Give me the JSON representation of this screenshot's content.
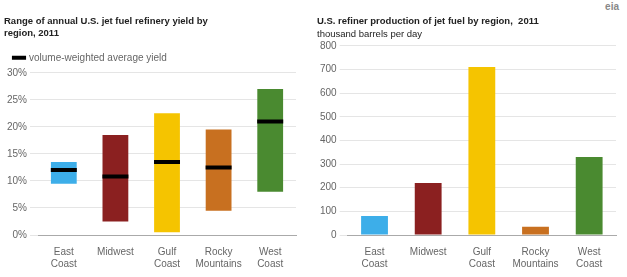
{
  "chart_data": [
    {
      "type": "range_bar",
      "title": "Range of annual U.S. jet fuel refinery yield by\nregion, 2011",
      "categories": [
        "East\nCoast",
        "Midwest",
        "Gulf\nCoast",
        "Rocky\nMountains",
        "West\nCoast"
      ],
      "low": [
        0.095,
        0.025,
        0.005,
        0.045,
        0.08
      ],
      "high": [
        0.135,
        0.185,
        0.225,
        0.195,
        0.27
      ],
      "colors": [
        "#3daee9",
        "#8b2020",
        "#f5c400",
        "#c87020",
        "#4a8a30"
      ],
      "series": [
        {
          "name": "volume-weighted average yield",
          "type": "marker",
          "marker": "line",
          "color": "#000000",
          "values": [
            0.12,
            0.108,
            0.135,
            0.125,
            0.21
          ]
        }
      ],
      "ylim": [
        0,
        0.3
      ],
      "yticks": [
        {
          "value": 0,
          "label": "0%"
        },
        {
          "value": 0.05,
          "label": "5%"
        },
        {
          "value": 0.1,
          "label": "10%"
        },
        {
          "value": 0.15,
          "label": "15%"
        },
        {
          "value": 0.2,
          "label": "20%"
        },
        {
          "value": 0.25,
          "label": "25%"
        },
        {
          "value": 0.3,
          "label": "30%"
        }
      ],
      "grid": true,
      "legend": "upper left"
    },
    {
      "type": "bar",
      "title": "U.S. refiner production of jet fuel by region,  2011",
      "subtitle": "thousand barrels per day",
      "categories": [
        "East\nCoast",
        "Midwest",
        "Gulf\nCoast",
        "Rocky\nMountains",
        "West\nCoast"
      ],
      "values": [
        80,
        220,
        710,
        35,
        330
      ],
      "colors": [
        "#3daee9",
        "#8b2020",
        "#f5c400",
        "#c87020",
        "#4a8a30"
      ],
      "ylim": [
        0,
        800
      ],
      "yticks": [
        0,
        100,
        200,
        300,
        400,
        500,
        600,
        700,
        800
      ],
      "grid": true,
      "annotations": [
        "eia"
      ]
    }
  ]
}
